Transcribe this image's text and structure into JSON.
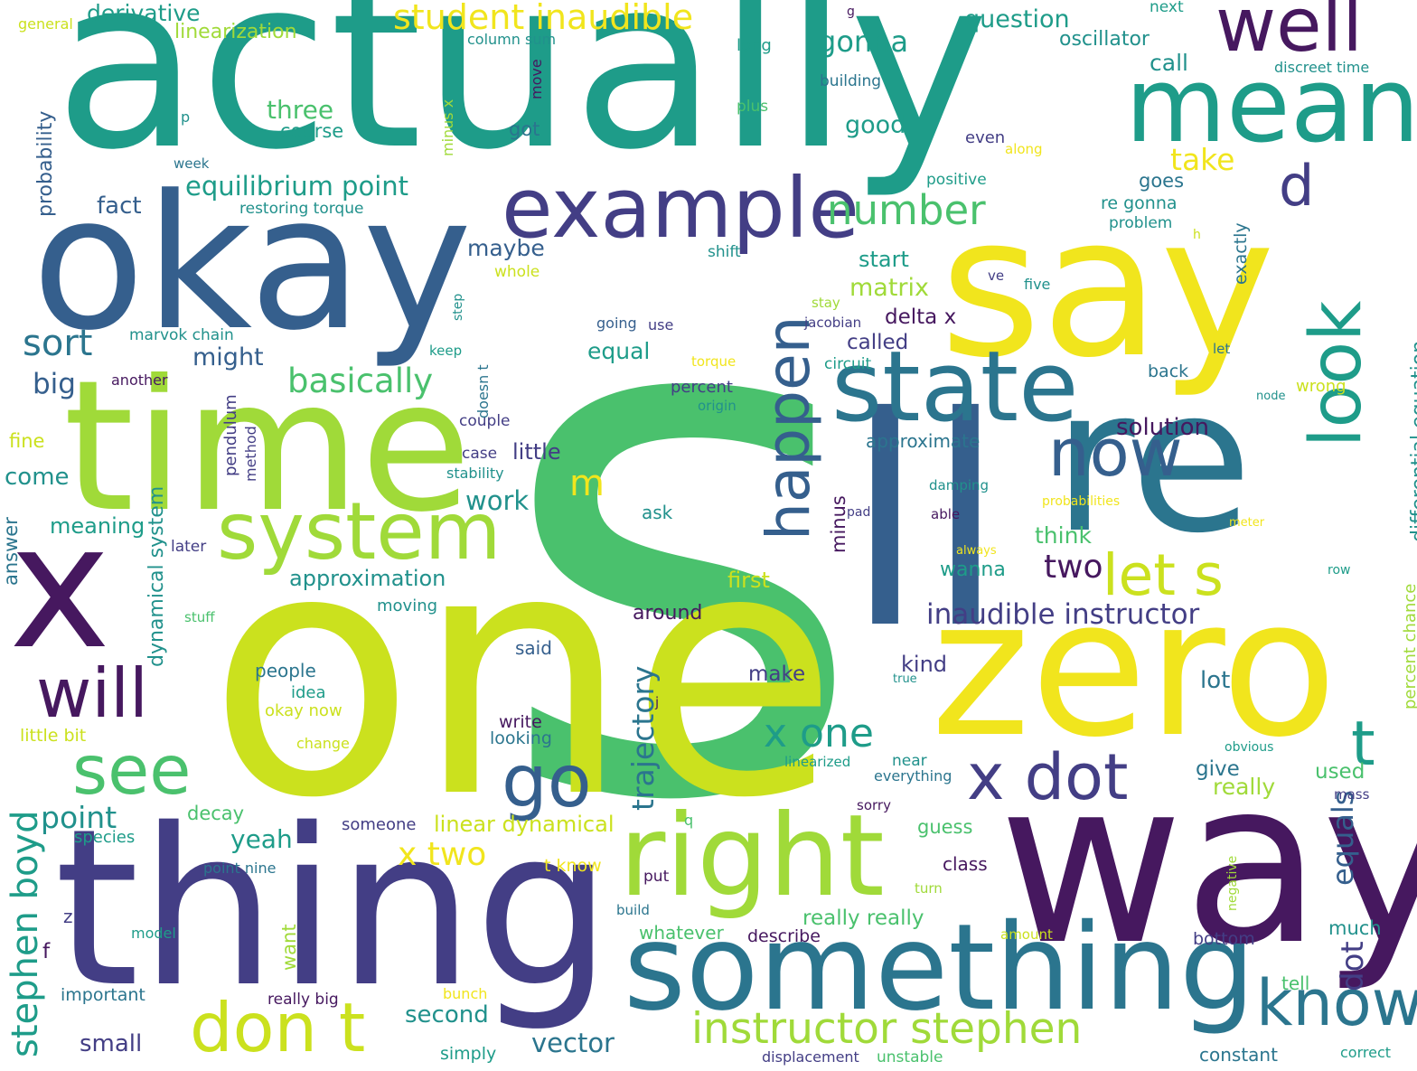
{
  "words": [
    "s",
    "actually",
    "one",
    "okay",
    "time",
    "x",
    "thing",
    "say",
    "ll",
    "re",
    "way",
    "zero",
    "something",
    "right",
    "example",
    "state",
    "mean",
    "well",
    "system",
    "will",
    "see",
    "go",
    "don t",
    "look",
    "now",
    "happen",
    "know",
    "t",
    "x dot",
    "instructor stephen",
    "let s",
    "d",
    "number",
    "x one",
    "inaudible instructor",
    "student inaudible",
    "equilibrium point",
    "basically",
    "stephen boyd",
    "sort",
    "m",
    "x two",
    "two",
    "trajectory",
    "take",
    "gonna",
    "point",
    "yeah",
    "work",
    "matrix",
    "solution",
    "approximation",
    "equals",
    "dot",
    "differential equation",
    "percent chance",
    "vector",
    "second",
    "small",
    "linear dynamical",
    "derivative",
    "linearization",
    "question",
    "oscillator",
    "three",
    "course",
    "good",
    "call",
    "probability",
    "fact",
    "maybe",
    "might",
    "big",
    "come",
    "meaning",
    "dynamical system",
    "start",
    "delta x",
    "called",
    "equal",
    "approximate",
    "little",
    "think",
    "wanna",
    "first",
    "around",
    "kind",
    "lot",
    "make",
    "give",
    "really",
    "used",
    "guess",
    "class",
    "really really",
    "whatever",
    "describe",
    "bottom",
    "much",
    "tell",
    "constant",
    "simply",
    "correct",
    "displacement",
    "unstable",
    "people",
    "idea",
    "okay now",
    "said",
    "write",
    "looking",
    "little bit",
    "change",
    "decay",
    "someone",
    "species",
    "point nine",
    "model",
    "important",
    "really big",
    "bunch",
    "z",
    "f",
    "answer",
    "later",
    "fine",
    "pendulum",
    "method",
    "case",
    "stability",
    "couple",
    "another",
    "marvok chain",
    "restoring torque",
    "week",
    "p",
    "general",
    "column sum",
    "long",
    "minus x",
    "move",
    "got",
    "plus",
    "even",
    "along",
    "positive",
    "goes",
    "re gonna",
    "problem",
    "h",
    "exactly",
    "five",
    "ve",
    "stay",
    "jacobian",
    "going",
    "use",
    "keep",
    "step",
    "doesn t",
    "shift",
    "whole",
    "torque",
    "circuit",
    "percent",
    "origin",
    "back",
    "let",
    "node",
    "wrong",
    "damping",
    "pad",
    "able",
    "probabilities",
    "meter",
    "always",
    "row",
    "ask",
    "minus",
    "stuff",
    "moving",
    "near",
    "linearized",
    "everything",
    "obvious",
    "mass",
    "true",
    "j",
    "q",
    "sorry",
    "turn",
    "negative",
    "amount",
    "build",
    "want",
    "t know",
    "put",
    "next",
    "g",
    "discreet time",
    "building"
  ],
  "palette": {
    "dark_purple": "#46185f",
    "indigo": "#433e85",
    "blue": "#355f8d",
    "steel": "#2b758e",
    "teal": "#21918c",
    "sea": "#1e9c89",
    "green": "#4ac16d",
    "lime": "#a0da39",
    "yellow_green": "#cbe11e",
    "yellow": "#f1e51d"
  }
}
